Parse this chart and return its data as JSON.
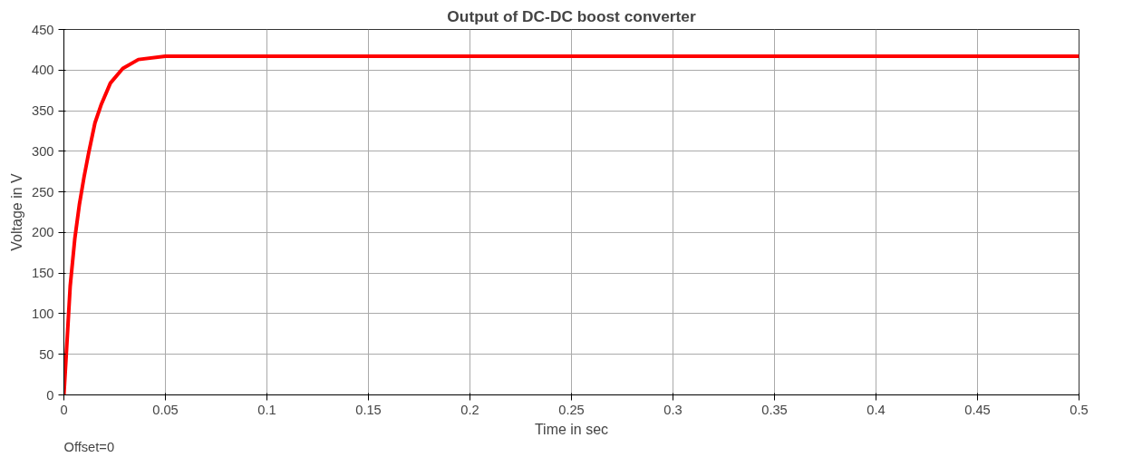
{
  "chart_data": {
    "type": "line",
    "title": "Output of DC-DC boost converter",
    "xlabel": "Time in sec",
    "ylabel": "Voltage in V",
    "annotations": [
      "Offset=0"
    ],
    "series": [
      {
        "color": "#ff0000",
        "x": [
          0,
          0.0012,
          0.0031,
          0.0054,
          0.0076,
          0.0099,
          0.0122,
          0.0153,
          0.0183,
          0.0229,
          0.029,
          0.0367,
          0.05,
          0.1,
          0.2,
          0.3,
          0.4,
          0.5
        ],
        "values": [
          0,
          51,
          134,
          193,
          234,
          268,
          298,
          335,
          357,
          384,
          402,
          413,
          417,
          417,
          417,
          417,
          417,
          417
        ]
      }
    ],
    "xlim": [
      0,
      0.5
    ],
    "ylim": [
      0,
      450
    ],
    "xticks": [
      0,
      0.05,
      0.1,
      0.15,
      0.2,
      0.25,
      0.3,
      0.35,
      0.4,
      0.45,
      0.5
    ],
    "yticks": [
      0,
      50,
      100,
      150,
      200,
      250,
      300,
      350,
      400,
      450
    ],
    "grid": true,
    "line_style": "solid",
    "marker": "none"
  }
}
